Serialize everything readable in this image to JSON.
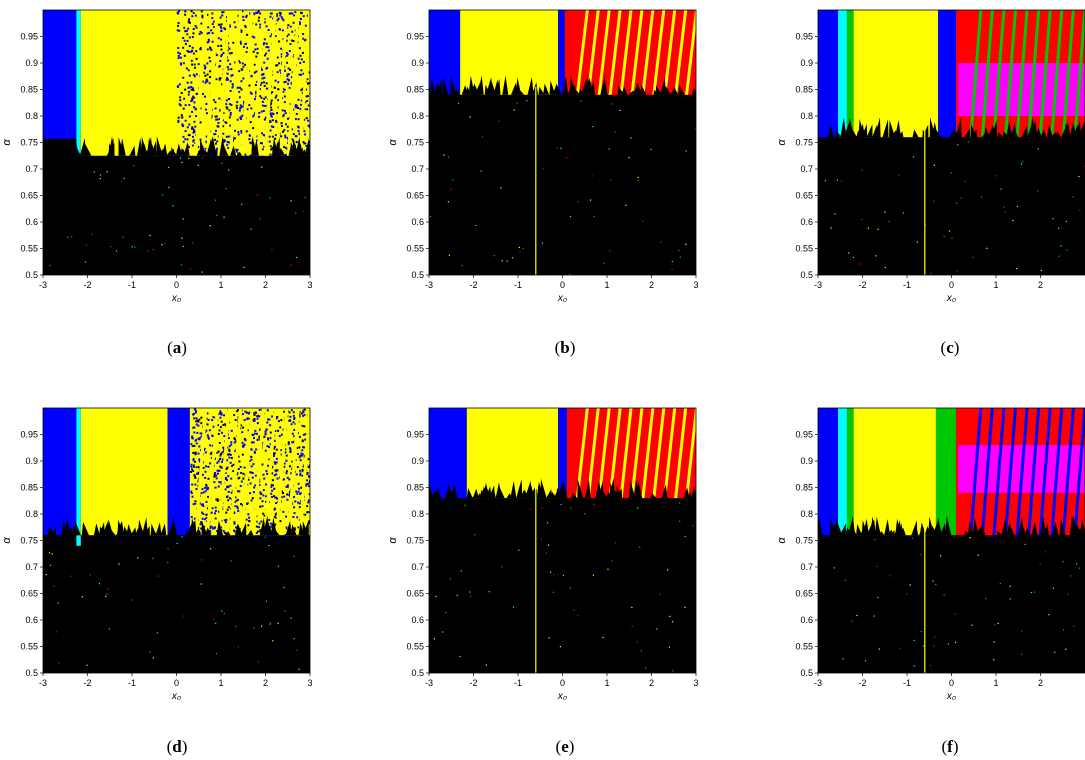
{
  "chart_data": [
    {
      "type": "heatmap",
      "panel": "a",
      "caption_letter": "a",
      "xlabel": "x₀",
      "ylabel": "α",
      "xlim": [
        -3,
        3
      ],
      "ylim": [
        0.5,
        1.0
      ],
      "xticks": [
        "-3",
        "-2",
        "-1",
        "0",
        "1",
        "2",
        "3"
      ],
      "yticks": [
        "0.5",
        "0.55",
        "0.6",
        "0.65",
        "0.7",
        "0.75",
        "0.8",
        "0.85",
        "0.9",
        "0.95"
      ],
      "colors": {
        "blue": "#0000ff",
        "yellow": "#ffff00",
        "cyan": "#00ffff",
        "green": "#00c800",
        "red": "#ff0000",
        "magenta": "#ff00ff",
        "black": "#000000"
      },
      "black_threshold": 0.725,
      "regions": [
        {
          "x0": -3,
          "x1": -2.25,
          "y0": 0.757,
          "y1": 1.0,
          "color": "blue"
        },
        {
          "x0": -2.25,
          "x1": -2.15,
          "y0": 0.725,
          "y1": 1.0,
          "color": "cyan"
        },
        {
          "x0": -2.15,
          "x1": 0.0,
          "y0": 0.725,
          "y1": 1.0,
          "color": "yellow"
        },
        {
          "x0": 0.0,
          "x1": 3.0,
          "y0": 0.725,
          "y1": 1.0,
          "color": "speckle_yb"
        }
      ],
      "stripes": {
        "start": 0.4,
        "end": 3.0,
        "count": 10,
        "color": "yellow"
      },
      "vline": null
    },
    {
      "type": "heatmap",
      "panel": "b",
      "caption_letter": "b",
      "xlabel": "x₀",
      "ylabel": "α",
      "xlim": [
        -3,
        3
      ],
      "ylim": [
        0.5,
        1.0
      ],
      "xticks": [
        "-3",
        "-2",
        "-1",
        "0",
        "1",
        "2",
        "3"
      ],
      "yticks": [
        "0.5",
        "0.55",
        "0.6",
        "0.65",
        "0.7",
        "0.75",
        "0.8",
        "0.85",
        "0.9",
        "0.95"
      ],
      "colors": {
        "blue": "#0000ff",
        "yellow": "#ffff00",
        "cyan": "#00ffff",
        "green": "#00c800",
        "red": "#ff0000",
        "magenta": "#ff00ff",
        "black": "#000000"
      },
      "black_threshold": 0.84,
      "regions": [
        {
          "x0": -3,
          "x1": -2.3,
          "y0": 0.84,
          "y1": 1.0,
          "color": "blue"
        },
        {
          "x0": -2.3,
          "x1": -0.1,
          "y0": 0.84,
          "y1": 1.0,
          "color": "yellow"
        },
        {
          "x0": -0.1,
          "x1": 0.05,
          "y0": 0.84,
          "y1": 1.0,
          "color": "blue"
        },
        {
          "x0": 0.05,
          "x1": 3.0,
          "y0": 0.84,
          "y1": 1.0,
          "color": "red"
        }
      ],
      "stripes": {
        "start": 0.3,
        "end": 3.0,
        "count": 11,
        "color": "yellow"
      },
      "vline": -0.6
    },
    {
      "type": "heatmap",
      "panel": "c",
      "caption_letter": "c",
      "xlabel": "x₀",
      "ylabel": "α",
      "xlim": [
        -3,
        3
      ],
      "ylim": [
        0.5,
        1.0
      ],
      "xticks": [
        "-3",
        "-2",
        "-1",
        "0",
        "1",
        "2"
      ],
      "yticks": [
        "0.5",
        "0.55",
        "0.6",
        "0.65",
        "0.7",
        "0.75",
        "0.8",
        "0.85",
        "0.9",
        "0.95"
      ],
      "colors": {
        "blue": "#0000ff",
        "yellow": "#ffff00",
        "cyan": "#00ffff",
        "green": "#00c800",
        "red": "#ff0000",
        "magenta": "#ff00ff",
        "black": "#000000"
      },
      "black_threshold": 0.76,
      "regions": [
        {
          "x0": -3,
          "x1": -2.55,
          "y0": 0.76,
          "y1": 1.0,
          "color": "blue"
        },
        {
          "x0": -2.55,
          "x1": -2.35,
          "y0": 0.76,
          "y1": 1.0,
          "color": "cyan"
        },
        {
          "x0": -2.35,
          "x1": -2.2,
          "y0": 0.76,
          "y1": 1.0,
          "color": "green"
        },
        {
          "x0": -2.2,
          "x1": -0.3,
          "y0": 0.76,
          "y1": 1.0,
          "color": "yellow"
        },
        {
          "x0": -0.3,
          "x1": 0.1,
          "y0": 0.76,
          "y1": 1.0,
          "color": "blue"
        },
        {
          "x0": 0.1,
          "x1": 3.0,
          "y0": 0.76,
          "y1": 1.0,
          "color": "red"
        },
        {
          "x0": 0.15,
          "x1": 3.0,
          "y0": 0.8,
          "y1": 0.9,
          "color": "magenta"
        }
      ],
      "stripes": {
        "start": 0.4,
        "end": 3.0,
        "count": 10,
        "color": "green"
      },
      "vline": -0.6
    },
    {
      "type": "heatmap",
      "panel": "d",
      "caption_letter": "d",
      "xlabel": "x₀",
      "ylabel": "α",
      "xlim": [
        -3,
        3
      ],
      "ylim": [
        0.5,
        1.0
      ],
      "xticks": [
        "-3",
        "-2",
        "-1",
        "0",
        "1",
        "2",
        "3"
      ],
      "yticks": [
        "0.5",
        "0.55",
        "0.6",
        "0.65",
        "0.7",
        "0.75",
        "0.8",
        "0.85",
        "0.9",
        "0.95"
      ],
      "colors": {
        "blue": "#0000ff",
        "yellow": "#ffff00",
        "cyan": "#00ffff",
        "green": "#00c800",
        "red": "#ff0000",
        "magenta": "#ff00ff",
        "black": "#000000"
      },
      "black_threshold": 0.76,
      "regions": [
        {
          "x0": -3,
          "x1": -2.25,
          "y0": 0.76,
          "y1": 1.0,
          "color": "blue"
        },
        {
          "x0": -2.25,
          "x1": -2.15,
          "y0": 0.74,
          "y1": 1.0,
          "color": "cyan"
        },
        {
          "x0": -2.15,
          "x1": -0.2,
          "y0": 0.76,
          "y1": 1.0,
          "color": "yellow"
        },
        {
          "x0": -0.2,
          "x1": 0.3,
          "y0": 0.76,
          "y1": 1.0,
          "color": "blue"
        },
        {
          "x0": 0.3,
          "x1": 3.0,
          "y0": 0.76,
          "y1": 1.0,
          "color": "speckle_yb"
        }
      ],
      "stripes": {
        "start": 0.4,
        "end": 3.0,
        "count": 10,
        "color": "yellow"
      },
      "vline": null
    },
    {
      "type": "heatmap",
      "panel": "e",
      "caption_letter": "e",
      "xlabel": "x₀",
      "ylabel": "α",
      "xlim": [
        -3,
        3
      ],
      "ylim": [
        0.5,
        1.0
      ],
      "xticks": [
        "-3",
        "-2",
        "-1",
        "0",
        "1",
        "2",
        "3"
      ],
      "yticks": [
        "0.5",
        "0.55",
        "0.6",
        "0.65",
        "0.7",
        "0.75",
        "0.8",
        "0.85",
        "0.9",
        "0.95"
      ],
      "colors": {
        "blue": "#0000ff",
        "yellow": "#ffff00",
        "cyan": "#00ffff",
        "green": "#00c800",
        "red": "#ff0000",
        "magenta": "#ff00ff",
        "black": "#000000"
      },
      "black_threshold": 0.83,
      "regions": [
        {
          "x0": -3,
          "x1": -2.15,
          "y0": 0.83,
          "y1": 1.0,
          "color": "blue"
        },
        {
          "x0": -2.15,
          "x1": -0.1,
          "y0": 0.83,
          "y1": 1.0,
          "color": "yellow"
        },
        {
          "x0": -0.1,
          "x1": 0.1,
          "y0": 0.83,
          "y1": 1.0,
          "color": "blue"
        },
        {
          "x0": 0.1,
          "x1": 3.0,
          "y0": 0.83,
          "y1": 1.0,
          "color": "red"
        }
      ],
      "stripes": {
        "start": 0.3,
        "end": 3.0,
        "count": 11,
        "color": "yellow"
      },
      "vline": -0.6
    },
    {
      "type": "heatmap",
      "panel": "f",
      "caption_letter": "f",
      "xlabel": "x₀",
      "ylabel": "α",
      "xlim": [
        -3,
        3
      ],
      "ylim": [
        0.5,
        1.0
      ],
      "xticks": [
        "-3",
        "-2",
        "-1",
        "0",
        "1",
        "2"
      ],
      "yticks": [
        "0.5",
        "0.55",
        "0.6",
        "0.65",
        "0.7",
        "0.75",
        "0.8",
        "0.85",
        "0.9",
        "0.95"
      ],
      "colors": {
        "blue": "#0000ff",
        "yellow": "#ffff00",
        "cyan": "#00ffff",
        "green": "#00c800",
        "red": "#ff0000",
        "magenta": "#ff00ff",
        "black": "#000000"
      },
      "black_threshold": 0.76,
      "regions": [
        {
          "x0": -3,
          "x1": -2.55,
          "y0": 0.76,
          "y1": 1.0,
          "color": "blue"
        },
        {
          "x0": -2.55,
          "x1": -2.35,
          "y0": 0.76,
          "y1": 1.0,
          "color": "cyan"
        },
        {
          "x0": -2.35,
          "x1": -2.2,
          "y0": 0.76,
          "y1": 1.0,
          "color": "green"
        },
        {
          "x0": -2.2,
          "x1": -0.35,
          "y0": 0.76,
          "y1": 1.0,
          "color": "yellow"
        },
        {
          "x0": -0.35,
          "x1": 0.1,
          "y0": 0.76,
          "y1": 1.0,
          "color": "green"
        },
        {
          "x0": 0.1,
          "x1": 3.0,
          "y0": 0.76,
          "y1": 1.0,
          "color": "red"
        },
        {
          "x0": 0.15,
          "x1": 3.0,
          "y0": 0.84,
          "y1": 0.93,
          "color": "magenta"
        }
      ],
      "stripes": {
        "start": 0.4,
        "end": 3.0,
        "count": 10,
        "color": "blue"
      },
      "vline": -0.6
    }
  ]
}
